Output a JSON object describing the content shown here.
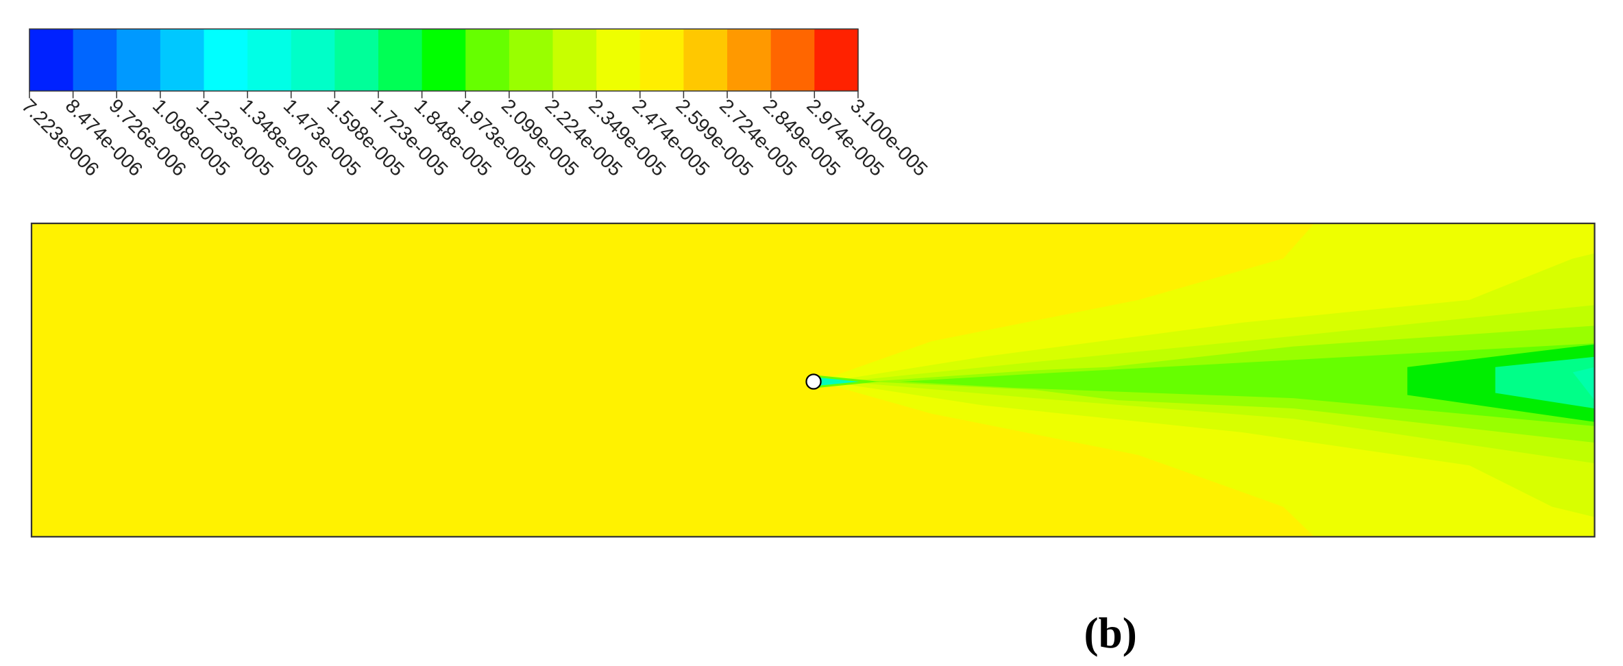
{
  "colorbar": {
    "colors": [
      "#0022ff",
      "#0066ff",
      "#0099ff",
      "#00c8ff",
      "#00ffff",
      "#00ffe6",
      "#00ffc8",
      "#00ff99",
      "#00ff55",
      "#00ff00",
      "#66ff00",
      "#99ff00",
      "#c8ff00",
      "#eeff00",
      "#ffee00",
      "#ffc800",
      "#ff9900",
      "#ff6600",
      "#ff2200"
    ],
    "labels": [
      "7.223e-006",
      "8.474e-006",
      "9.726e-006",
      "1.098e-005",
      "1.223e-005",
      "1.348e-005",
      "1.473e-005",
      "1.598e-005",
      "1.723e-005",
      "1.848e-005",
      "1.973e-005",
      "2.099e-005",
      "2.224e-005",
      "2.349e-005",
      "2.474e-005",
      "2.599e-005",
      "2.724e-005",
      "2.849e-005",
      "2.974e-005",
      "3.100e-005"
    ]
  },
  "caption": "(b)"
}
